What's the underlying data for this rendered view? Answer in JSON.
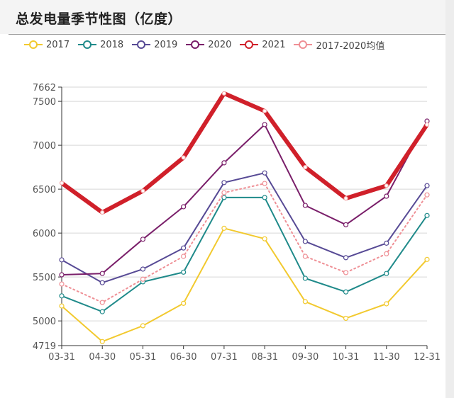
{
  "header": {
    "title": "总发电量季节性图（亿度）"
  },
  "legend": [
    {
      "label": "2017",
      "color": "#f2c92e"
    },
    {
      "label": "2018",
      "color": "#1f8a8a"
    },
    {
      "label": "2019",
      "color": "#574a95"
    },
    {
      "label": "2020",
      "color": "#7a1f6a"
    },
    {
      "label": "2021",
      "color": "#d0202a"
    },
    {
      "label": "2017-2020均值",
      "color": "#ef8f95"
    }
  ],
  "chart_data": {
    "type": "line",
    "title": "总发电量季节性图（亿度）",
    "xlabel": "",
    "ylabel": "",
    "categories": [
      "03-31",
      "04-30",
      "05-31",
      "06-30",
      "07-31",
      "08-31",
      "09-30",
      "10-31",
      "11-30",
      "12-31"
    ],
    "ylim": [
      4719,
      7662
    ],
    "yticks": [
      4719,
      5000,
      5500,
      6000,
      6500,
      7000,
      7500,
      7662
    ],
    "grid": true,
    "legend_position": "top",
    "series": [
      {
        "name": "2017",
        "color": "#f2c92e",
        "width": 2,
        "dashed": false,
        "values": [
          5170,
          4765,
          4945,
          5200,
          6055,
          5935,
          5220,
          5030,
          5195,
          5700
        ]
      },
      {
        "name": "2018",
        "color": "#1f8a8a",
        "width": 2,
        "dashed": false,
        "values": [
          5285,
          5105,
          5445,
          5555,
          6405,
          6405,
          5485,
          5330,
          5540,
          6200
        ]
      },
      {
        "name": "2019",
        "color": "#574a95",
        "width": 2,
        "dashed": false,
        "values": [
          5695,
          5435,
          5590,
          5830,
          6575,
          6685,
          5905,
          5720,
          5885,
          6540
        ]
      },
      {
        "name": "2020",
        "color": "#7a1f6a",
        "width": 2,
        "dashed": false,
        "values": [
          5525,
          5540,
          5930,
          6300,
          6800,
          7235,
          6315,
          6095,
          6420,
          7275
        ]
      },
      {
        "name": "2021",
        "color": "#d0202a",
        "width": 6,
        "dashed": false,
        "values": [
          6570,
          6235,
          6480,
          6860,
          7590,
          7390,
          6750,
          6395,
          6540,
          7235
        ]
      },
      {
        "name": "2017-2020均值",
        "color": "#ef8f95",
        "width": 2,
        "dashed": true,
        "values": [
          5420,
          5210,
          5475,
          5735,
          6460,
          6565,
          5735,
          5550,
          5765,
          6435
        ]
      }
    ]
  }
}
